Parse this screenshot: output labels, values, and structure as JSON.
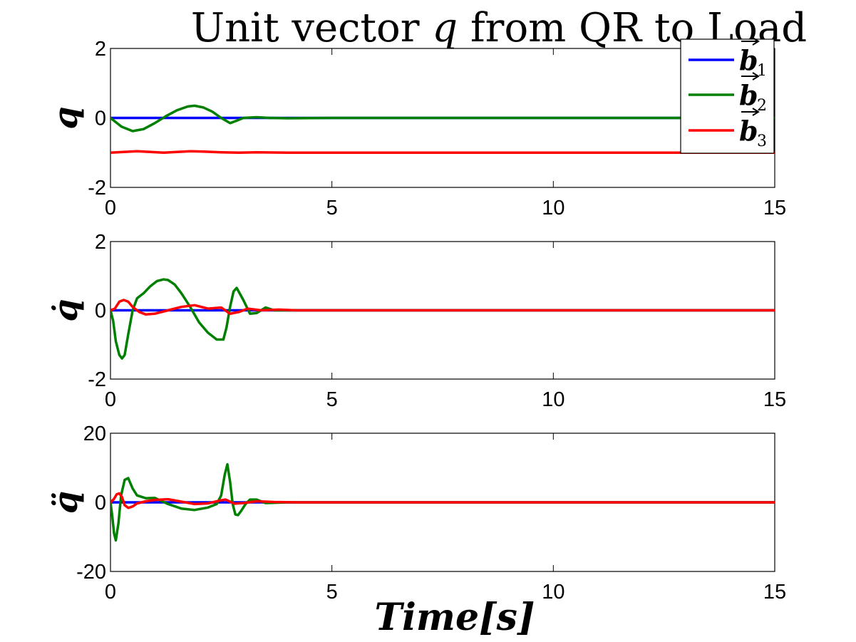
{
  "figure": {
    "title_prefix": "Unit vector ",
    "title_var": "q",
    "title_suffix": " from QR to Load",
    "xlabel": "Time[s]"
  },
  "legend": [
    {
      "name": "b",
      "sub": "1",
      "color": "#0000ff"
    },
    {
      "name": "b",
      "sub": "2",
      "color": "#008000"
    },
    {
      "name": "b",
      "sub": "3",
      "color": "#ff0000"
    }
  ],
  "chart_data": [
    {
      "type": "line",
      "ylabel": "q",
      "xlim": [
        0,
        15
      ],
      "ylim": [
        -2,
        2
      ],
      "xticks": [
        0,
        5,
        10,
        15
      ],
      "yticks": [
        -2,
        0,
        2
      ],
      "series": [
        {
          "name": "b1",
          "color": "#0000ff",
          "x": [
            0,
            15
          ],
          "y": [
            0,
            0
          ]
        },
        {
          "name": "b2",
          "color": "#008000",
          "x": [
            0,
            0.25,
            0.5,
            0.75,
            1.0,
            1.25,
            1.5,
            1.75,
            1.9,
            2.1,
            2.3,
            2.5,
            2.7,
            2.85,
            3.0,
            3.3,
            3.6,
            4,
            5,
            8,
            12,
            15
          ],
          "y": [
            0,
            -0.25,
            -0.38,
            -0.32,
            -0.15,
            0.05,
            0.22,
            0.33,
            0.35,
            0.3,
            0.18,
            0.0,
            -0.15,
            -0.08,
            0.0,
            0.02,
            0.0,
            -0.01,
            0.0,
            0.0,
            0.0,
            0.0
          ]
        },
        {
          "name": "b3",
          "color": "#ff0000",
          "x": [
            0,
            0.3,
            0.6,
            0.9,
            1.2,
            1.5,
            1.8,
            2.1,
            2.5,
            2.9,
            3.3,
            4,
            5,
            10,
            15
          ],
          "y": [
            -1.0,
            -0.98,
            -0.96,
            -0.98,
            -1.0,
            -0.98,
            -0.96,
            -0.97,
            -0.99,
            -1.0,
            -0.99,
            -1.0,
            -1.0,
            -1.0,
            -1.0
          ]
        }
      ]
    },
    {
      "type": "line",
      "ylabel": "q̇",
      "xlim": [
        0,
        15
      ],
      "ylim": [
        -2,
        2
      ],
      "xticks": [
        0,
        5,
        10,
        15
      ],
      "yticks": [
        -2,
        0,
        2
      ],
      "series": [
        {
          "name": "b1",
          "color": "#0000ff",
          "x": [
            0,
            15
          ],
          "y": [
            0,
            0
          ]
        },
        {
          "name": "b2",
          "color": "#008000",
          "x": [
            0,
            0.06,
            0.12,
            0.2,
            0.26,
            0.32,
            0.4,
            0.5,
            0.6,
            0.75,
            0.9,
            1.05,
            1.2,
            1.3,
            1.45,
            1.6,
            1.8,
            2.0,
            2.2,
            2.4,
            2.55,
            2.62,
            2.7,
            2.78,
            2.85,
            3.0,
            3.15,
            3.3,
            3.5,
            3.7,
            4,
            5,
            8,
            12,
            15
          ],
          "y": [
            0,
            -0.3,
            -0.9,
            -1.3,
            -1.4,
            -1.3,
            -0.7,
            0.0,
            0.35,
            0.5,
            0.7,
            0.85,
            0.9,
            0.88,
            0.75,
            0.5,
            0.1,
            -0.35,
            -0.65,
            -0.85,
            -0.85,
            -0.5,
            0.1,
            0.55,
            0.65,
            0.3,
            -0.1,
            -0.08,
            0.08,
            0.0,
            0.0,
            0.0,
            0.0,
            0.0,
            0.0
          ]
        },
        {
          "name": "b3",
          "color": "#ff0000",
          "x": [
            0,
            0.1,
            0.2,
            0.3,
            0.4,
            0.5,
            0.65,
            0.8,
            1.0,
            1.3,
            1.6,
            1.9,
            2.2,
            2.5,
            2.7,
            2.9,
            3.1,
            3.4,
            3.8,
            4.2,
            5,
            10,
            15
          ],
          "y": [
            0,
            0.05,
            0.25,
            0.3,
            0.25,
            0.1,
            -0.05,
            -0.12,
            -0.1,
            0.0,
            0.1,
            0.15,
            0.05,
            0.08,
            -0.1,
            -0.05,
            0.05,
            0.0,
            0.02,
            0.0,
            0.0,
            0.0,
            0.0
          ]
        }
      ]
    },
    {
      "type": "line",
      "ylabel": "q̈",
      "xlim": [
        0,
        15
      ],
      "ylim": [
        -20,
        20
      ],
      "xticks": [
        0,
        5,
        10,
        15
      ],
      "yticks": [
        -20,
        0,
        20
      ],
      "series": [
        {
          "name": "b1",
          "color": "#0000ff",
          "x": [
            0,
            15
          ],
          "y": [
            0,
            0
          ]
        },
        {
          "name": "b2",
          "color": "#008000",
          "x": [
            0,
            0.04,
            0.08,
            0.12,
            0.18,
            0.24,
            0.32,
            0.4,
            0.5,
            0.6,
            0.8,
            1.0,
            1.3,
            1.6,
            1.9,
            2.2,
            2.4,
            2.5,
            2.58,
            2.64,
            2.7,
            2.76,
            2.82,
            2.88,
            2.95,
            3.05,
            3.15,
            3.3,
            3.5,
            4,
            5,
            8,
            12,
            15
          ],
          "y": [
            0,
            -4,
            -9,
            -11,
            -6,
            2,
            6.5,
            7,
            4,
            2,
            1.2,
            1.3,
            -0.5,
            -1.8,
            -2.2,
            -1.5,
            -0.5,
            2,
            8,
            11,
            6,
            -0.5,
            -3.5,
            -3.7,
            -2.5,
            -0.5,
            0.8,
            0.8,
            -0.2,
            0.0,
            0.0,
            0.0,
            0.0,
            0.0
          ]
        },
        {
          "name": "b3",
          "color": "#ff0000",
          "x": [
            0,
            0.08,
            0.14,
            0.2,
            0.26,
            0.32,
            0.4,
            0.5,
            0.6,
            0.8,
            1.0,
            1.3,
            1.6,
            1.9,
            2.2,
            2.5,
            2.6,
            2.7,
            2.8,
            3.0,
            3.3,
            3.7,
            4.2,
            5,
            10,
            15
          ],
          "y": [
            0,
            1,
            2.3,
            2.6,
            1.5,
            -0.8,
            -1.6,
            -1.2,
            -0.3,
            0.3,
            0.7,
            0.9,
            0.2,
            -0.5,
            -0.3,
            0.6,
            0.8,
            0.2,
            -0.4,
            -0.2,
            0.3,
            0.1,
            0.0,
            0.0,
            0.0,
            0.0
          ]
        }
      ]
    }
  ]
}
